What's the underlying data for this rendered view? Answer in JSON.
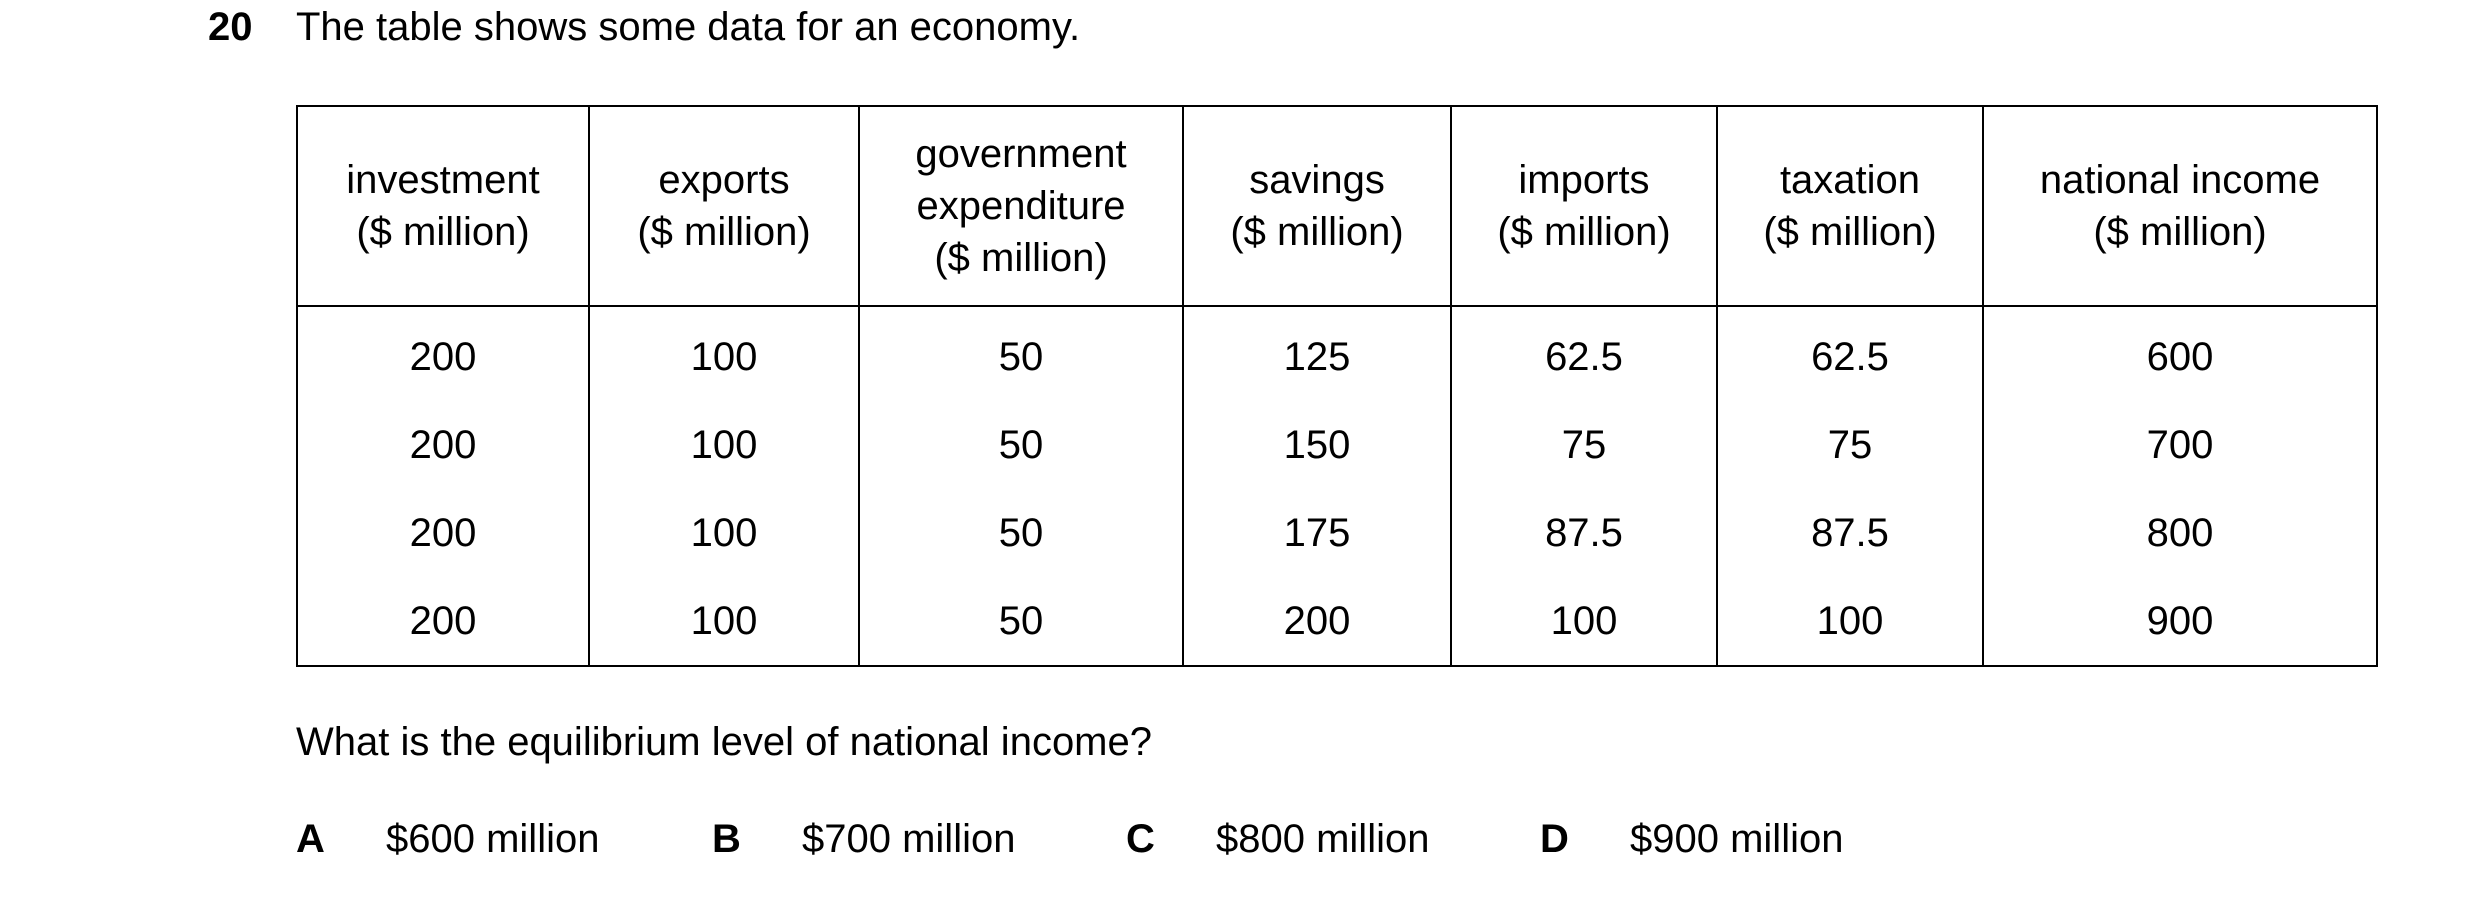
{
  "question": {
    "number": "20",
    "stem": "The table shows some data for an economy.",
    "prompt": "What is the equilibrium level of national income?"
  },
  "table": {
    "headers": [
      "investment\n($ million)",
      "exports\n($ million)",
      "government\nexpenditure\n($ million)",
      "savings\n($ million)",
      "imports\n($ million)",
      "taxation\n($ million)",
      "national income\n($ million)"
    ],
    "rows": [
      [
        "200",
        "100",
        "50",
        "125",
        "62.5",
        "62.5",
        "600"
      ],
      [
        "200",
        "100",
        "50",
        "150",
        "75",
        "75",
        "700"
      ],
      [
        "200",
        "100",
        "50",
        "175",
        "87.5",
        "87.5",
        "800"
      ],
      [
        "200",
        "100",
        "50",
        "200",
        "100",
        "100",
        "900"
      ]
    ]
  },
  "options": [
    {
      "letter": "A",
      "text": "$600 million"
    },
    {
      "letter": "B",
      "text": "$700 million"
    },
    {
      "letter": "C",
      "text": "$800 million"
    },
    {
      "letter": "D",
      "text": "$900 million"
    }
  ]
}
